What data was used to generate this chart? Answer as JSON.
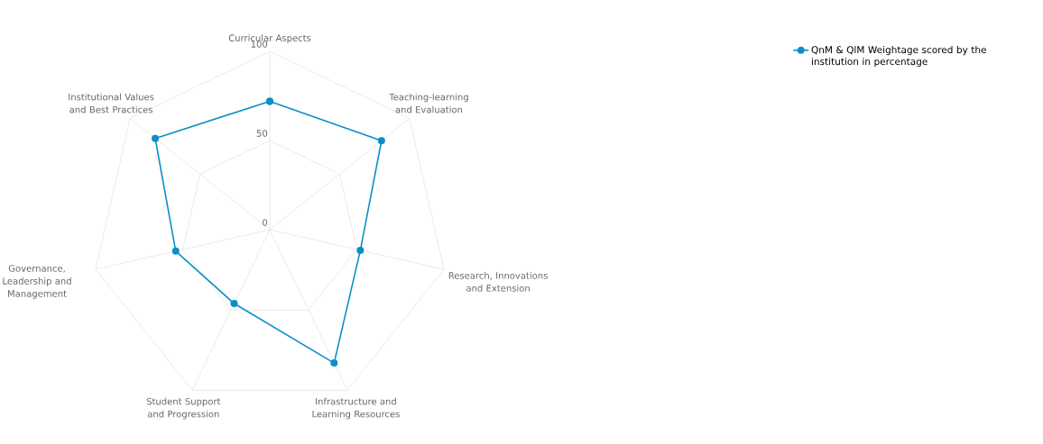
{
  "chart_data": {
    "type": "radar",
    "categories": [
      "Curricular Aspects",
      "Teaching-learning and Evaluation",
      "Research, Innovations and Extension",
      "Infrastructure and Learning Resources",
      "Student Support and Progression",
      "Governance, Leadership and Management",
      "Institutional Values and Best Practices"
    ],
    "series": [
      {
        "name": "QnM & QlM Weightage scored by the institution in percentage",
        "color": "#0a8fc9",
        "values": [
          72,
          80,
          52,
          83,
          46,
          54,
          82
        ]
      }
    ],
    "ylim": [
      0,
      100
    ],
    "yticks": [
      0,
      50,
      100
    ],
    "grid": true,
    "legend": "top right",
    "marker": "circle",
    "line_style": "solid"
  }
}
